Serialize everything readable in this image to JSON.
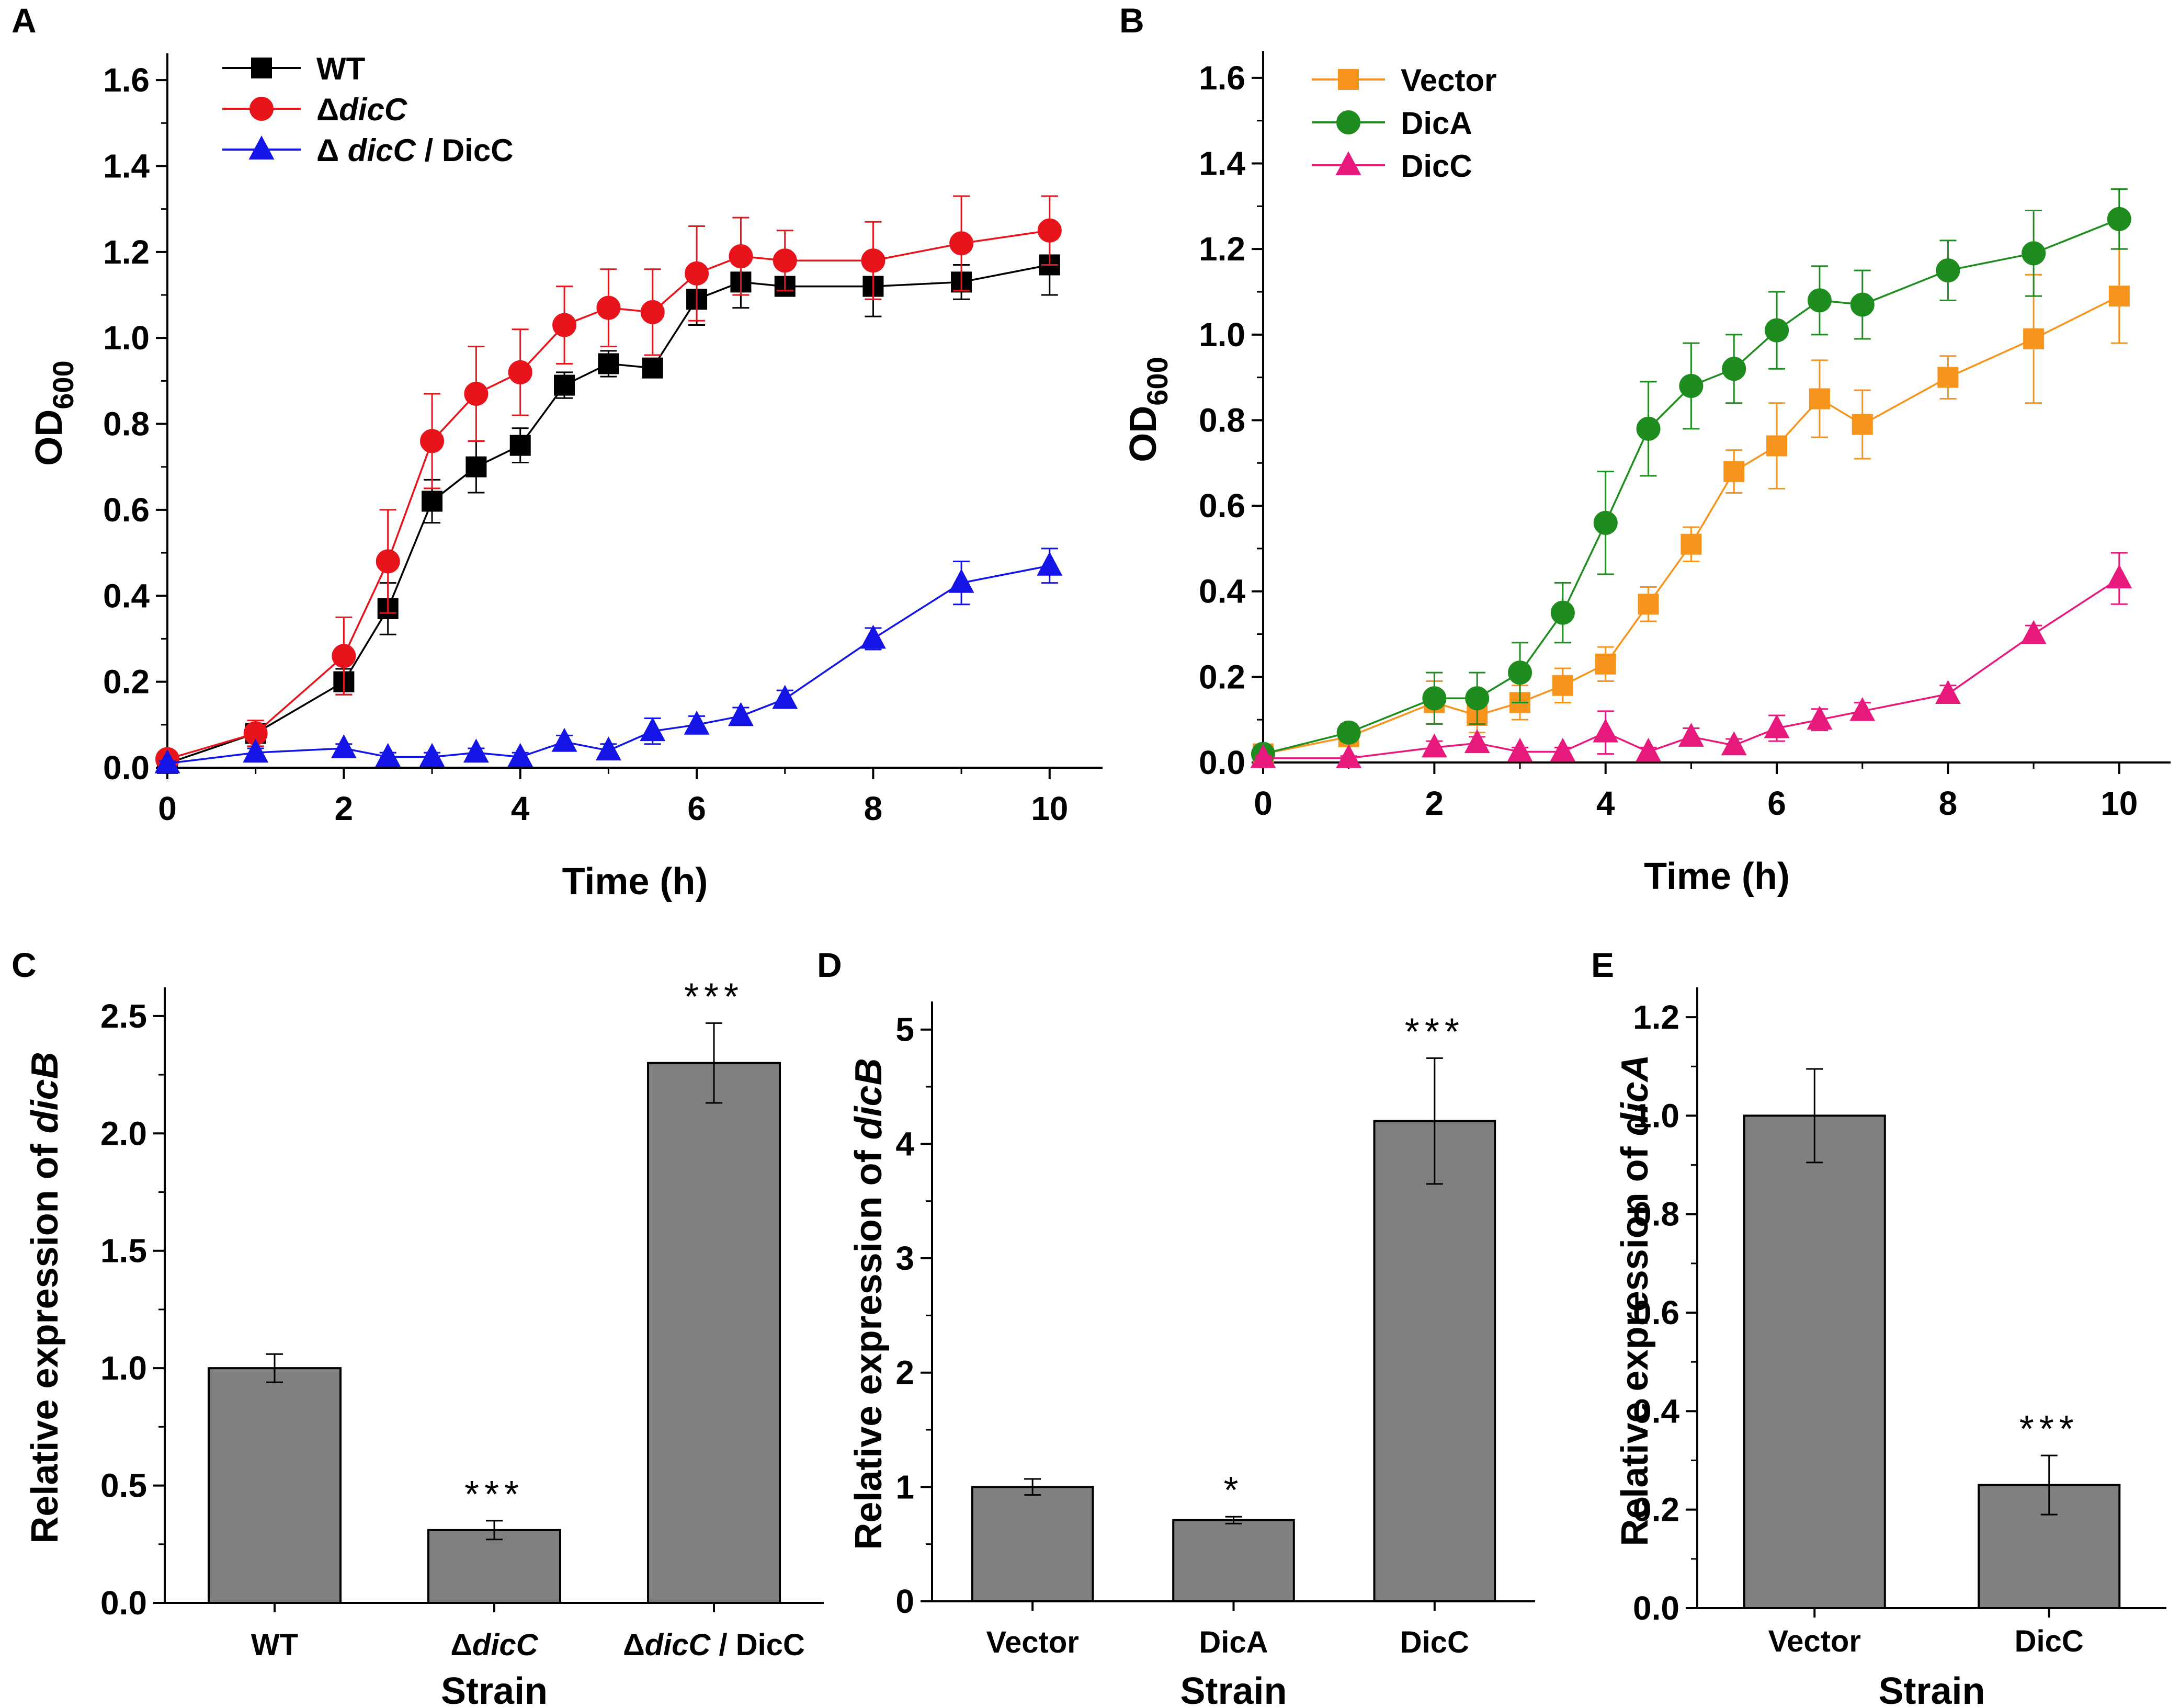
{
  "chart_data": [
    {
      "id": "A",
      "type": "line",
      "panel_label": "A",
      "xlabel": "Time (h)",
      "ylabel_main": "OD",
      "ylabel_sub": "600",
      "xlim": [
        0,
        10.6
      ],
      "ylim": [
        0,
        1.65
      ],
      "xticks": [
        0,
        2,
        4,
        6,
        8,
        10
      ],
      "yticks": [
        0.0,
        0.2,
        0.4,
        0.6,
        0.8,
        1.0,
        1.2,
        1.4,
        1.6
      ],
      "yticks_text": [
        "0.0",
        "0.2",
        "0.4",
        "0.6",
        "0.8",
        "1.0",
        "1.2",
        "1.4",
        "1.6"
      ],
      "legend_position": "top-left",
      "series": [
        {
          "name": "WT",
          "legend_prefix": "",
          "legend_italic": "",
          "legend_suffix": "WT",
          "color": "#000000",
          "marker": "square",
          "x": [
            0,
            1,
            2,
            2.5,
            3,
            3.5,
            4,
            4.5,
            5,
            5.5,
            6,
            6.5,
            7,
            8,
            9,
            10
          ],
          "y": [
            0.01,
            0.08,
            0.2,
            0.37,
            0.62,
            0.7,
            0.75,
            0.89,
            0.94,
            0.93,
            1.09,
            1.13,
            1.12,
            1.12,
            1.13,
            1.17
          ],
          "err": [
            0.01,
            0.02,
            0.03,
            0.06,
            0.05,
            0.06,
            0.04,
            0.03,
            0.03,
            0.02,
            0.06,
            0.06,
            0.02,
            0.07,
            0.04,
            0.07
          ]
        },
        {
          "name": "ΔdicC",
          "legend_prefix": "Δ",
          "legend_italic": "dicC",
          "legend_suffix": "",
          "color": "#e8141c",
          "marker": "circle",
          "x": [
            0,
            1,
            2,
            2.5,
            3,
            3.5,
            4,
            4.5,
            5,
            5.5,
            6,
            6.5,
            7,
            8,
            9,
            10
          ],
          "y": [
            0.02,
            0.08,
            0.26,
            0.48,
            0.76,
            0.87,
            0.92,
            1.03,
            1.07,
            1.06,
            1.15,
            1.19,
            1.18,
            1.18,
            1.22,
            1.25
          ],
          "err": [
            0.01,
            0.03,
            0.09,
            0.12,
            0.11,
            0.11,
            0.1,
            0.09,
            0.09,
            0.1,
            0.11,
            0.09,
            0.07,
            0.09,
            0.11,
            0.08
          ]
        },
        {
          "name": "Δ dicC / DicC",
          "legend_prefix": "Δ ",
          "legend_italic": "dicC",
          "legend_suffix": " / DicC",
          "color": "#1414e6",
          "marker": "triangle",
          "x": [
            0,
            1,
            2,
            2.5,
            3,
            3.5,
            4,
            4.5,
            5,
            5.5,
            6,
            6.5,
            7,
            8,
            9,
            10
          ],
          "y": [
            0.01,
            0.035,
            0.045,
            0.025,
            0.025,
            0.035,
            0.025,
            0.06,
            0.04,
            0.085,
            0.1,
            0.12,
            0.16,
            0.3,
            0.43,
            0.47
          ],
          "err": [
            0.005,
            0.01,
            0.01,
            0.01,
            0.01,
            0.01,
            0.01,
            0.015,
            0.015,
            0.03,
            0.02,
            0.02,
            0.02,
            0.025,
            0.05,
            0.04
          ]
        }
      ]
    },
    {
      "id": "B",
      "type": "line",
      "panel_label": "B",
      "xlabel": "Time (h)",
      "ylabel_main": "OD",
      "ylabel_sub": "600",
      "xlim": [
        0,
        10.6
      ],
      "ylim": [
        0,
        1.65
      ],
      "xticks": [
        0,
        2,
        4,
        6,
        8,
        10
      ],
      "yticks": [
        0.0,
        0.2,
        0.4,
        0.6,
        0.8,
        1.0,
        1.2,
        1.4,
        1.6
      ],
      "yticks_text": [
        "0.0",
        "0.2",
        "0.4",
        "0.6",
        "0.8",
        "1.0",
        "1.2",
        "1.4",
        "1.6"
      ],
      "legend_position": "top-left",
      "series": [
        {
          "name": "Vector",
          "legend_prefix": "",
          "legend_italic": "",
          "legend_suffix": "Vector",
          "color": "#f7941d",
          "marker": "square",
          "x": [
            0,
            1,
            2,
            2.5,
            3,
            3.5,
            4,
            4.5,
            5,
            5.5,
            6,
            6.5,
            7,
            8,
            9,
            10
          ],
          "y": [
            0.02,
            0.06,
            0.14,
            0.11,
            0.14,
            0.18,
            0.23,
            0.37,
            0.51,
            0.68,
            0.74,
            0.85,
            0.79,
            0.9,
            0.99,
            1.09
          ],
          "err": [
            0.01,
            0.02,
            0.05,
            0.04,
            0.04,
            0.04,
            0.04,
            0.04,
            0.04,
            0.05,
            0.1,
            0.09,
            0.08,
            0.05,
            0.15,
            0.11
          ]
        },
        {
          "name": "DicA",
          "legend_prefix": "",
          "legend_italic": "",
          "legend_suffix": "DicA",
          "color": "#1e8c1e",
          "marker": "circle",
          "x": [
            0,
            1,
            2,
            2.5,
            3,
            3.5,
            4,
            4.5,
            5,
            5.5,
            6,
            6.5,
            7,
            8,
            9,
            10
          ],
          "y": [
            0.02,
            0.07,
            0.15,
            0.15,
            0.21,
            0.35,
            0.56,
            0.78,
            0.88,
            0.92,
            1.01,
            1.08,
            1.07,
            1.15,
            1.19,
            1.27
          ],
          "err": [
            0.01,
            0.02,
            0.06,
            0.06,
            0.07,
            0.07,
            0.12,
            0.11,
            0.1,
            0.08,
            0.09,
            0.08,
            0.08,
            0.07,
            0.1,
            0.07
          ]
        },
        {
          "name": "DicC",
          "legend_prefix": "",
          "legend_italic": "",
          "legend_suffix": "DicC",
          "color": "#e8197d",
          "marker": "triangle",
          "x": [
            0,
            1,
            2,
            2.5,
            3,
            3.5,
            4,
            4.5,
            5,
            5.5,
            6,
            6.5,
            7,
            8,
            9,
            10
          ],
          "y": [
            0.01,
            0.01,
            0.035,
            0.045,
            0.025,
            0.025,
            0.07,
            0.025,
            0.06,
            0.04,
            0.08,
            0.1,
            0.12,
            0.16,
            0.3,
            0.43
          ],
          "err": [
            0.005,
            0.005,
            0.015,
            0.015,
            0.01,
            0.01,
            0.05,
            0.01,
            0.02,
            0.015,
            0.03,
            0.025,
            0.02,
            0.02,
            0.02,
            0.06
          ]
        }
      ]
    },
    {
      "id": "C",
      "type": "bar",
      "panel_label": "C",
      "ylabel_prefix": "Relative expression of ",
      "ylabel_italic": "dicB",
      "xlabel": "Strain",
      "ylim": [
        0,
        2.6
      ],
      "yticks": [
        0.0,
        0.5,
        1.0,
        1.5,
        2.0,
        2.5
      ],
      "yticks_text": [
        "0.0",
        "0.5",
        "1.0",
        "1.5",
        "2.0",
        "2.5"
      ],
      "bar_color": "#808080",
      "categories": [
        {
          "prefix": "",
          "italic": "",
          "suffix": "WT"
        },
        {
          "prefix": "Δ",
          "italic": "dicC",
          "suffix": ""
        },
        {
          "prefix": "Δ",
          "italic": "dicC",
          "suffix": " / DicC"
        }
      ],
      "values": [
        1.0,
        0.31,
        2.3
      ],
      "err": [
        0.06,
        0.04,
        0.17
      ],
      "annotations": [
        "",
        "***",
        "***"
      ]
    },
    {
      "id": "D",
      "type": "bar",
      "panel_label": "D",
      "ylabel_prefix": "Relative expression of ",
      "ylabel_italic": "dicB",
      "xlabel": "Strain",
      "ylim": [
        0,
        5.2
      ],
      "yticks": [
        0,
        1,
        2,
        3,
        4,
        5
      ],
      "yticks_text": [
        "0",
        "1",
        "2",
        "3",
        "4",
        "5"
      ],
      "bar_color": "#808080",
      "categories": [
        {
          "prefix": "",
          "italic": "",
          "suffix": "Vector"
        },
        {
          "prefix": "",
          "italic": "",
          "suffix": "DicA"
        },
        {
          "prefix": "",
          "italic": "",
          "suffix": "DicC"
        }
      ],
      "values": [
        1.0,
        0.71,
        4.2
      ],
      "err": [
        0.07,
        0.03,
        0.55
      ],
      "annotations": [
        "",
        "*",
        "***"
      ]
    },
    {
      "id": "E",
      "type": "bar",
      "panel_label": "E",
      "ylabel_prefix": "Relative expression of ",
      "ylabel_italic": "dicA",
      "xlabel": "Strain",
      "ylim": [
        0,
        1.25
      ],
      "yticks": [
        0.0,
        0.2,
        0.4,
        0.6,
        0.8,
        1.0,
        1.2
      ],
      "yticks_text": [
        "0.0",
        "0.2",
        "0.4",
        "0.6",
        "0.8",
        "1.0",
        "1.2"
      ],
      "bar_color": "#808080",
      "categories": [
        {
          "prefix": "",
          "italic": "",
          "suffix": "Vector"
        },
        {
          "prefix": "",
          "italic": "",
          "suffix": "DicC"
        }
      ],
      "values": [
        1.0,
        0.25
      ],
      "err": [
        0.095,
        0.06
      ],
      "annotations": [
        "",
        "***"
      ]
    }
  ]
}
